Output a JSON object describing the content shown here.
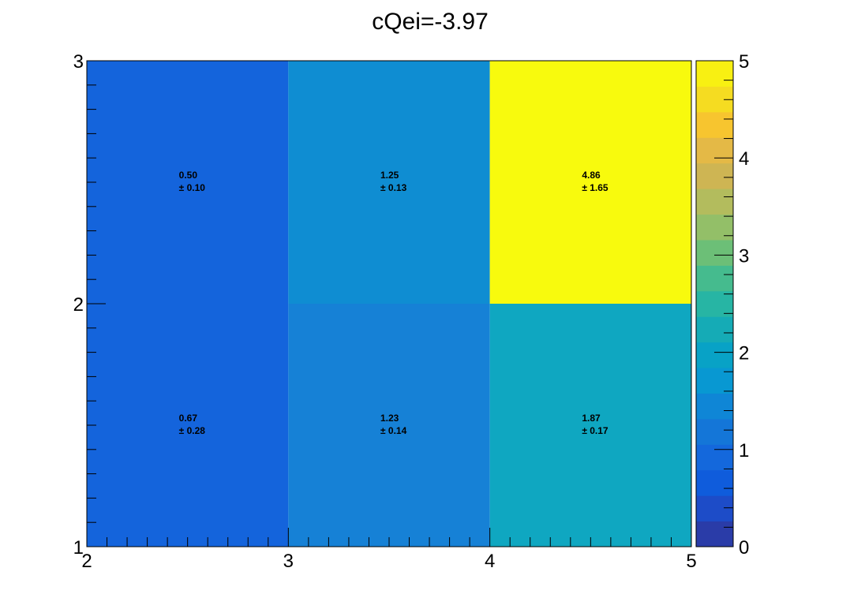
{
  "chart_data": {
    "type": "heatmap",
    "title": "cQei=-3.97",
    "xlabel": "",
    "ylabel": "",
    "x_bins": [
      [
        2,
        3
      ],
      [
        3,
        4
      ],
      [
        4,
        5
      ]
    ],
    "y_bins": [
      [
        1,
        2
      ],
      [
        2,
        3
      ]
    ],
    "xlim": [
      2,
      5
    ],
    "ylim": [
      1,
      3
    ],
    "zlim": [
      0,
      5
    ],
    "x_ticks": [
      "2",
      "3",
      "4",
      "5"
    ],
    "y_ticks": [
      "1",
      "2",
      "3"
    ],
    "z_ticks": [
      "0",
      "1",
      "2",
      "3",
      "4",
      "5"
    ],
    "cells": [
      {
        "x": [
          2,
          3
        ],
        "y": [
          1,
          2
        ],
        "value": "0.67",
        "error": "± 0.28",
        "color": "#1464dc"
      },
      {
        "x": [
          3,
          4
        ],
        "y": [
          1,
          2
        ],
        "value": "1.23",
        "error": "± 0.14",
        "color": "#1681d6"
      },
      {
        "x": [
          4,
          5
        ],
        "y": [
          1,
          2
        ],
        "value": "1.87",
        "error": "± 0.17",
        "color": "#0fa7c1"
      },
      {
        "x": [
          2,
          3
        ],
        "y": [
          2,
          3
        ],
        "value": "0.50",
        "error": "± 0.10",
        "color": "#1464dc"
      },
      {
        "x": [
          3,
          4
        ],
        "y": [
          2,
          3
        ],
        "value": "1.25",
        "error": "± 0.13",
        "color": "#0f8dd2"
      },
      {
        "x": [
          4,
          5
        ],
        "y": [
          2,
          3
        ],
        "value": "4.86",
        "error": "± 1.65",
        "color": "#f8fa0d"
      }
    ],
    "palette": [
      "#2a3ca8",
      "#1d4cc8",
      "#0f5cdc",
      "#1468dc",
      "#1476d8",
      "#0f86d6",
      "#0898d2",
      "#08a2c6",
      "#15abb6",
      "#27b5a4",
      "#45bb8e",
      "#6cbf77",
      "#93bf68",
      "#b3bc5d",
      "#ceb553",
      "#e4b946",
      "#f7c52f",
      "#f5dc21",
      "#f8f012"
    ],
    "grid": false,
    "legend": "color scale right"
  }
}
